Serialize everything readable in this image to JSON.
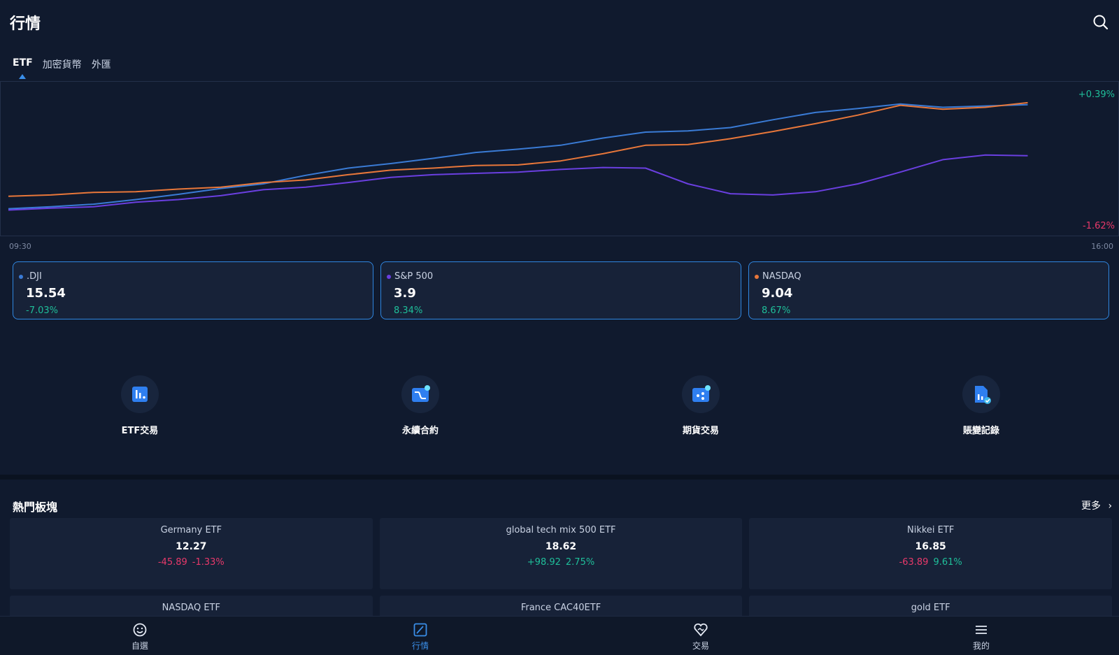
{
  "header": {
    "title": "行情"
  },
  "tabs": {
    "items": [
      "ETF",
      "加密貨幣",
      "外匯"
    ],
    "active": 0
  },
  "chart_data": {
    "type": "line",
    "categories": [
      "09:30",
      null,
      null,
      null,
      null,
      null,
      null,
      null,
      null,
      null,
      null,
      null,
      null,
      null,
      null,
      null,
      null,
      null,
      null,
      null,
      null,
      null,
      null,
      null,
      null,
      null,
      "16:00"
    ],
    "series": [
      {
        "name": ".DJI",
        "color": "#3a7bd5",
        "values": [
          -1.37,
          -1.34,
          -1.3,
          -1.23,
          -1.15,
          -1.06,
          -0.99,
          -0.86,
          -0.75,
          -0.68,
          -0.6,
          -0.51,
          -0.46,
          -0.4,
          -0.29,
          -0.2,
          -0.18,
          -0.13,
          -0.01,
          0.1,
          0.16,
          0.23,
          0.18,
          0.2,
          0.22,
          null,
          null
        ]
      },
      {
        "name": "S&P 500",
        "color": "#6a3fe0",
        "values": [
          -1.39,
          -1.36,
          -1.34,
          -1.27,
          -1.23,
          -1.17,
          -1.08,
          -1.04,
          -0.97,
          -0.89,
          -0.85,
          -0.83,
          -0.81,
          -0.77,
          -0.74,
          -0.75,
          -0.99,
          -1.14,
          -1.16,
          -1.11,
          -0.99,
          -0.81,
          -0.62,
          -0.55,
          -0.56,
          null,
          null
        ]
      },
      {
        "name": "NASDAQ",
        "color": "#e8773a",
        "values": [
          -1.18,
          -1.16,
          -1.12,
          -1.11,
          -1.07,
          -1.04,
          -0.97,
          -0.93,
          -0.85,
          -0.78,
          -0.75,
          -0.71,
          -0.7,
          -0.64,
          -0.53,
          -0.4,
          -0.39,
          -0.3,
          -0.19,
          -0.07,
          0.06,
          0.21,
          0.15,
          0.18,
          0.25,
          null,
          null
        ]
      }
    ],
    "ylim": [
      -1.78,
      0.58
    ],
    "yticks": [
      {
        "value": 0.39,
        "label": "+0.39%",
        "color": "#1fbf9a"
      },
      {
        "value": -1.62,
        "label": "-1.62%",
        "color": "#e8396a"
      }
    ]
  },
  "index_cards": [
    {
      "name": ".DJI",
      "color": "#3a7bd5",
      "price": "15.54",
      "change": "-7.03%",
      "change_color": "#1fbf9a"
    },
    {
      "name": "S&P 500",
      "color": "#6a3fe0",
      "price": "3.9",
      "change": "8.34%",
      "change_color": "#1fbf9a"
    },
    {
      "name": "NASDAQ",
      "color": "#e8773a",
      "price": "9.04",
      "change": "8.67%",
      "change_color": "#1fbf9a"
    }
  ],
  "quick_actions": [
    "ETF交易",
    "永續合約",
    "期貨交易",
    "賬變記錄"
  ],
  "hot_section": {
    "title": "熱門板塊",
    "more": "更多",
    "items": [
      {
        "name": "Germany ETF",
        "price": "12.27",
        "change": {
          "text": "-45.89",
          "color": "#e8396a"
        },
        "percent": {
          "text": "-1.33%",
          "color": "#e8396a"
        }
      },
      {
        "name": "global tech mix 500 ETF",
        "price": "18.62",
        "change": {
          "text": "+98.92",
          "color": "#1fbf9a"
        },
        "percent": {
          "text": "2.75%",
          "color": "#1fbf9a"
        }
      },
      {
        "name": "Nikkei ETF",
        "price": "16.85",
        "change": {
          "text": "-63.89",
          "color": "#e8396a"
        },
        "percent": {
          "text": "9.61%",
          "color": "#1fbf9a"
        }
      },
      {
        "name": "NASDAQ ETF"
      },
      {
        "name": "France CAC40ETF"
      },
      {
        "name": "gold ETF"
      }
    ]
  },
  "bottom_nav": {
    "items": [
      "自選",
      "行情",
      "交易",
      "我的"
    ],
    "active": 1
  }
}
